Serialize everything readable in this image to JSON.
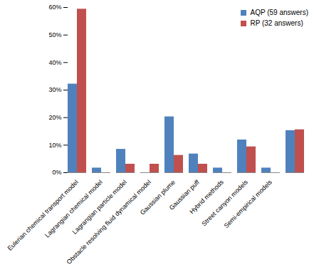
{
  "chart_data": {
    "type": "bar",
    "categories": [
      "Eulerian chemical transport model",
      "Lagrangian chemical model",
      "Lagrangian particle model",
      "Obstacle resolving fluid dynamical model",
      "Gaussian plume",
      "Gaussian puff",
      "Hybrid methods",
      "Street canyon models",
      "Semi-empirical models",
      null
    ],
    "series": [
      {
        "name": "AQP (59 answers)",
        "color": "#4F81BD",
        "values": [
          32.2,
          1.7,
          8.5,
          0,
          20.3,
          6.8,
          1.7,
          11.9,
          1.7,
          15.3
        ]
      },
      {
        "name": "RP (32 answers)",
        "color": "#C0504D",
        "values": [
          59.4,
          0,
          3.1,
          3.1,
          6.3,
          3.1,
          0,
          9.4,
          0,
          15.6
        ]
      }
    ],
    "ylim": [
      0,
      60
    ],
    "yticks": [
      {
        "value": 0,
        "label": "0%"
      },
      {
        "value": 10,
        "label": "10%"
      },
      {
        "value": 20,
        "label": "20%"
      },
      {
        "value": 30,
        "label": "30%"
      },
      {
        "value": 40,
        "label": "40%"
      },
      {
        "value": 50,
        "label": "50%"
      },
      {
        "value": 60,
        "label": "60%"
      }
    ],
    "grid": false,
    "legend": "top-right"
  }
}
